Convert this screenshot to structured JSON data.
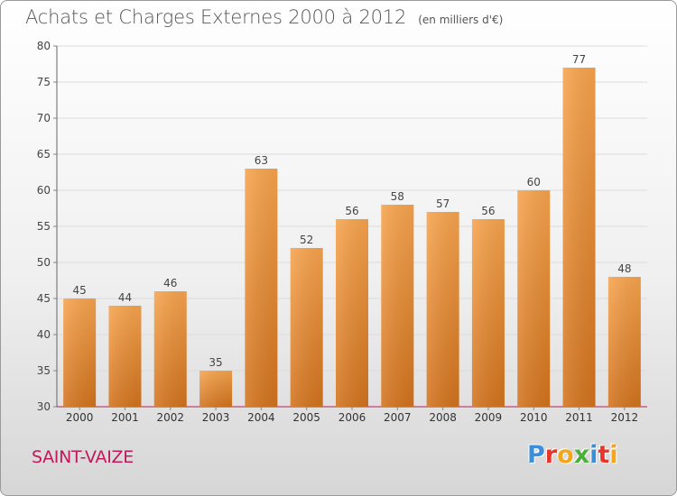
{
  "title": "Achats et Charges Externes 2000 à 2012",
  "subtitle": "(en milliers d'€)",
  "commune": "SAINT-VAIZE",
  "brand": "Proxiti",
  "colors": {
    "bar_top": "#f7a44e",
    "bar_bottom": "#d2731e",
    "commune": "#c2185b",
    "axis": "#c0185a"
  },
  "chart_data": {
    "type": "bar",
    "categories": [
      "2000",
      "2001",
      "2002",
      "2003",
      "2004",
      "2005",
      "2006",
      "2007",
      "2008",
      "2009",
      "2010",
      "2011",
      "2012"
    ],
    "values": [
      45,
      44,
      46,
      35,
      63,
      52,
      56,
      58,
      57,
      56,
      60,
      77,
      48
    ],
    "title": "Achats et Charges Externes 2000 à 2012",
    "subtitle": "(en milliers d'€)",
    "ylim": [
      30,
      80
    ],
    "yticks": [
      30,
      35,
      40,
      45,
      50,
      55,
      60,
      65,
      70,
      75,
      80
    ],
    "grid": true,
    "data_labels": true
  }
}
